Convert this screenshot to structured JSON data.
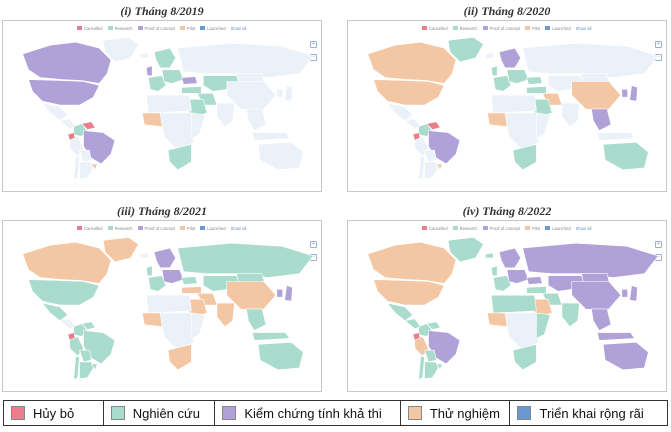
{
  "colors": {
    "cancelled": "#ec7d8a",
    "research": "#a9dccd",
    "proof": "#b1a1d9",
    "pilot": "#f4c7a4",
    "launched": "#6a98d1",
    "none": "#eaf1f9"
  },
  "mini_legend": {
    "cancelled": "Cancelled",
    "research": "Research",
    "proof": "Proof of concept",
    "pilot": "Pilot",
    "launched": "Launched",
    "show_all": "Show all"
  },
  "zoom": {
    "in": "+",
    "out": "−"
  },
  "panels": [
    {
      "title": "(i) Tháng 8/2019",
      "countries": {
        "canada": "proof",
        "usa": "proof",
        "mexico": "none",
        "central_am": "none",
        "colombia": "research",
        "ecuador": "cancelled",
        "peru": "none",
        "venezuela": "cancelled",
        "brazil": "proof",
        "bolivia": "none",
        "argentina": "none",
        "chile": "none",
        "uruguay": "pilot",
        "greenland": "none",
        "iceland": "none",
        "uk": "proof",
        "scandinavia": "research",
        "europe_w": "research",
        "europe_e": "research",
        "russia": "none",
        "ukraine": "proof",
        "turkey": "research",
        "middle_east": "research",
        "saudi": "research",
        "n_africa": "none",
        "w_africa": "pilot",
        "c_africa": "none",
        "e_africa": "none",
        "s_africa": "research",
        "central_asia": "research",
        "china": "none",
        "mongolia": "none",
        "india": "none",
        "se_asia": "none",
        "japan": "none",
        "korea": "none",
        "indonesia": "none",
        "australia": "none"
      }
    },
    {
      "title": "(ii) Tháng 8/2020",
      "countries": {
        "canada": "pilot",
        "usa": "pilot",
        "mexico": "none",
        "central_am": "none",
        "colombia": "research",
        "ecuador": "cancelled",
        "peru": "none",
        "venezuela": "cancelled",
        "brazil": "proof",
        "bolivia": "none",
        "argentina": "none",
        "chile": "none",
        "uruguay": "pilot",
        "greenland": "research",
        "iceland": "none",
        "uk": "research",
        "scandinavia": "proof",
        "europe_w": "research",
        "europe_e": "research",
        "russia": "none",
        "ukraine": "research",
        "turkey": "research",
        "middle_east": "pilot",
        "saudi": "research",
        "n_africa": "none",
        "w_africa": "pilot",
        "c_africa": "none",
        "e_africa": "none",
        "s_africa": "research",
        "central_asia": "none",
        "china": "pilot",
        "mongolia": "none",
        "india": "none",
        "se_asia": "proof",
        "japan": "proof",
        "korea": "proof",
        "indonesia": "none",
        "australia": "research"
      }
    },
    {
      "title": "(iii) Tháng 8/2021",
      "countries": {
        "canada": "pilot",
        "usa": "research",
        "mexico": "research",
        "central_am": "none",
        "colombia": "research",
        "ecuador": "cancelled",
        "peru": "research",
        "venezuela": "research",
        "brazil": "research",
        "bolivia": "research",
        "argentina": "research",
        "chile": "research",
        "uruguay": "research",
        "greenland": "pilot",
        "iceland": "none",
        "uk": "research",
        "scandinavia": "proof",
        "europe_w": "research",
        "europe_e": "proof",
        "russia": "research",
        "ukraine": "research",
        "turkey": "pilot",
        "middle_east": "pilot",
        "saudi": "pilot",
        "n_africa": "none",
        "w_africa": "pilot",
        "c_africa": "none",
        "e_africa": "none",
        "s_africa": "pilot",
        "central_asia": "research",
        "china": "pilot",
        "mongolia": "research",
        "india": "pilot",
        "se_asia": "research",
        "japan": "proof",
        "korea": "proof",
        "indonesia": "research",
        "australia": "research"
      }
    },
    {
      "title": "(iv) Tháng 8/2022",
      "countries": {
        "canada": "pilot",
        "usa": "pilot",
        "mexico": "research",
        "central_am": "research",
        "colombia": "research",
        "ecuador": "cancelled",
        "peru": "pilot",
        "venezuela": "research",
        "brazil": "proof",
        "bolivia": "research",
        "argentina": "research",
        "chile": "research",
        "uruguay": "research",
        "greenland": "research",
        "iceland": "research",
        "uk": "research",
        "scandinavia": "proof",
        "europe_w": "research",
        "europe_e": "proof",
        "russia": "proof",
        "ukraine": "proof",
        "turkey": "research",
        "middle_east": "research",
        "saudi": "pilot",
        "n_africa": "research",
        "w_africa": "pilot",
        "c_africa": "none",
        "e_africa": "research",
        "s_africa": "research",
        "central_asia": "proof",
        "china": "proof",
        "mongolia": "proof",
        "india": "research",
        "se_asia": "proof",
        "japan": "proof",
        "korea": "proof",
        "indonesia": "proof",
        "australia": "proof"
      }
    }
  ],
  "legend": [
    {
      "key": "cancelled",
      "label": "Hủy bỏ"
    },
    {
      "key": "research",
      "label": "Nghiên cứu"
    },
    {
      "key": "proof",
      "label": "Kiểm chứng tính khả thi"
    },
    {
      "key": "pilot",
      "label": "Thử nghiệm"
    },
    {
      "key": "launched",
      "label": "Triển khai rộng rãi"
    }
  ]
}
